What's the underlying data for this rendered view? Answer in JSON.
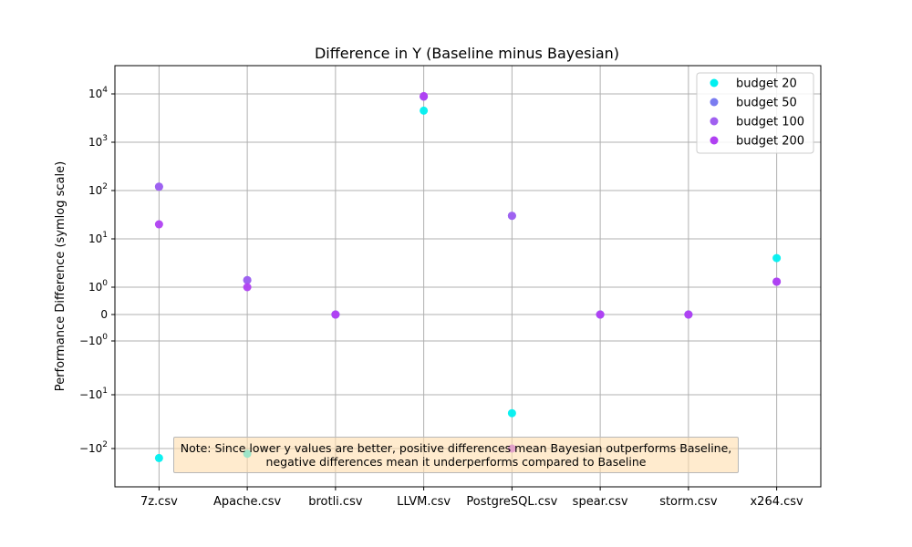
{
  "chart_data": {
    "type": "scatter",
    "title": "Difference in Y (Baseline minus Bayesian)",
    "xlabel": "",
    "ylabel": "Performance Difference (symlog scale)",
    "y_scale": "symlog",
    "y_linthresh": 1,
    "categories": [
      "7z.csv",
      "Apache.csv",
      "brotli.csv",
      "LLVM.csv",
      "PostgreSQL.csv",
      "spear.csv",
      "storm.csv",
      "x264.csv"
    ],
    "y_ticks": [
      {
        "value": 10000,
        "base": "10",
        "exp": "4"
      },
      {
        "value": 1000,
        "base": "10",
        "exp": "3"
      },
      {
        "value": 100,
        "base": "10",
        "exp": "2"
      },
      {
        "value": 10,
        "base": "10",
        "exp": "1"
      },
      {
        "value": 1,
        "base": "10",
        "exp": "0"
      },
      {
        "value": 0,
        "base": "0",
        "exp": ""
      },
      {
        "value": -1,
        "base": "−10",
        "exp": "0"
      },
      {
        "value": -10,
        "base": "−10",
        "exp": "1"
      },
      {
        "value": -100,
        "base": "−10",
        "exp": "2"
      }
    ],
    "grid": true,
    "legend_position": "top-right",
    "series": [
      {
        "name": "budget 20",
        "color": "#00f0f0",
        "values": [
          -150,
          -125,
          0,
          4500,
          -22,
          0,
          0,
          4
        ]
      },
      {
        "name": "budget 50",
        "color": "#7a7cf0",
        "values": [
          120,
          1.4,
          0,
          8800,
          30,
          0,
          0,
          1.3
        ]
      },
      {
        "name": "budget 100",
        "color": "#a060f0",
        "values": [
          120,
          1.4,
          0,
          8800,
          30,
          0,
          0,
          1.3
        ]
      },
      {
        "name": "budget 200",
        "color": "#b040f2",
        "values": [
          20,
          1,
          0,
          9000,
          -100,
          0,
          0,
          1.3
        ]
      }
    ]
  },
  "note": {
    "line1": "Note: Since lower y values are better, positive differences mean Bayesian outperforms Baseline,",
    "line2": "negative differences mean it underperforms compared to Baseline"
  }
}
